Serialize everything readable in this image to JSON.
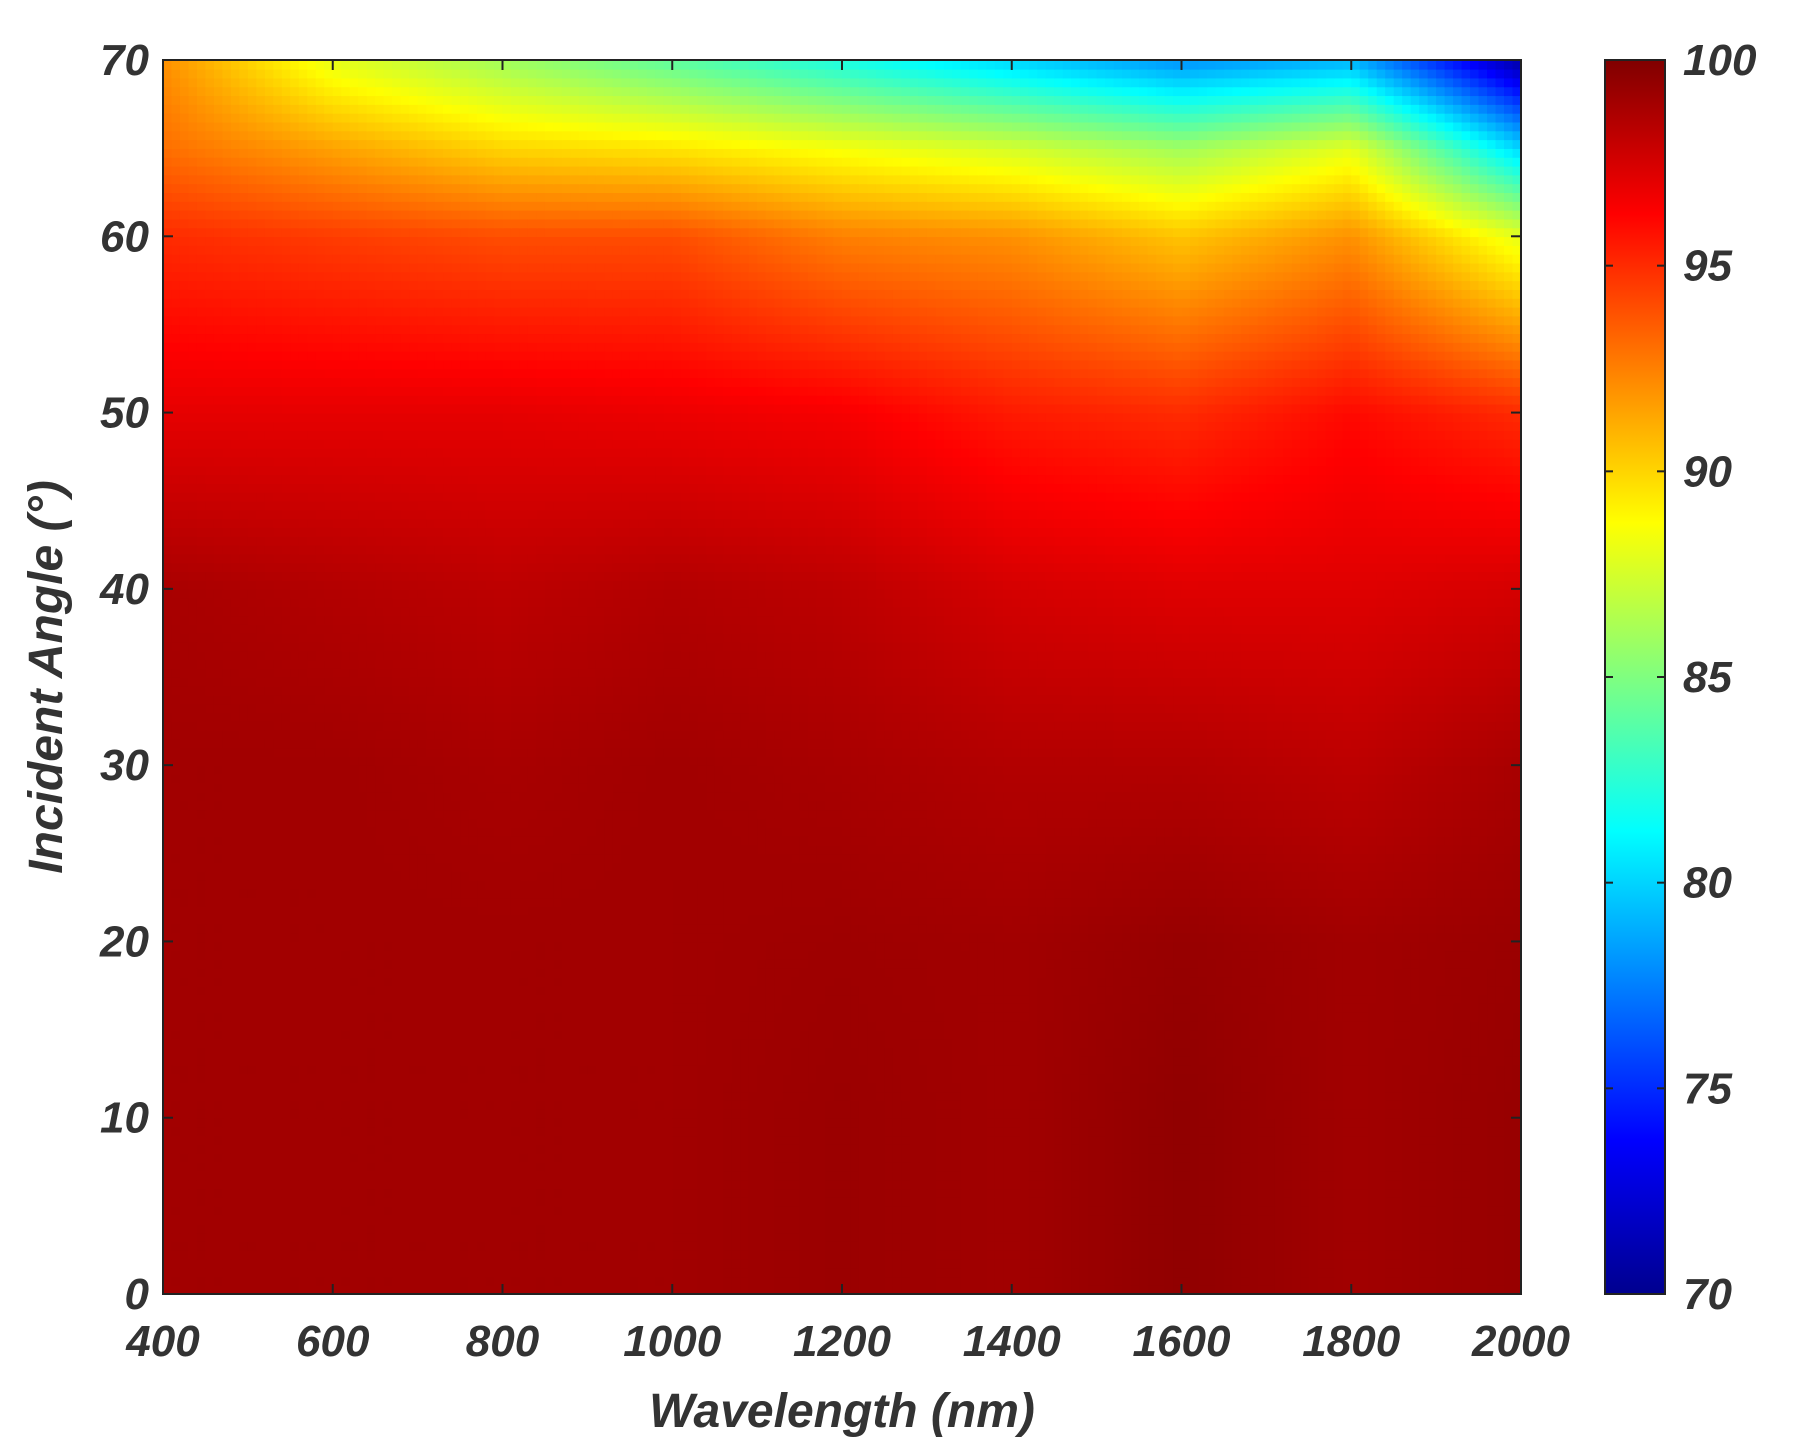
{
  "chart_data": {
    "type": "heatmap",
    "title": "",
    "xlabel": "Wavelength (nm)",
    "ylabel": "Incident Angle (°)",
    "xlim": [
      400,
      2000
    ],
    "ylim": [
      0,
      70
    ],
    "x_ticks": [
      "400",
      "600",
      "800",
      "1000",
      "1200",
      "1400",
      "1600",
      "1800",
      "2000"
    ],
    "y_ticks": [
      "0",
      "10",
      "20",
      "30",
      "40",
      "50",
      "60",
      "70"
    ],
    "colorbar": {
      "range": [
        70,
        100
      ],
      "ticks": [
        "70",
        "75",
        "80",
        "85",
        "90",
        "95",
        "100"
      ],
      "colormap": "jet"
    },
    "x": [
      400,
      600,
      800,
      1000,
      1200,
      1400,
      1600,
      1800,
      2000
    ],
    "y": [
      0,
      10,
      20,
      30,
      40,
      50,
      60,
      65,
      70
    ],
    "z": [
      [
        99.0,
        99.0,
        99.0,
        99.0,
        99.2,
        99.0,
        99.5,
        99.0,
        99.3
      ],
      [
        99.0,
        99.0,
        99.0,
        99.0,
        99.2,
        99.0,
        99.5,
        99.0,
        99.3
      ],
      [
        99.0,
        99.0,
        99.0,
        99.0,
        99.1,
        99.0,
        99.3,
        99.0,
        99.2
      ],
      [
        99.0,
        99.0,
        98.8,
        99.0,
        98.8,
        98.5,
        98.5,
        98.2,
        98.8
      ],
      [
        98.8,
        98.5,
        98.2,
        98.5,
        98.2,
        97.5,
        97.2,
        97.2,
        97.5
      ],
      [
        97.0,
        97.0,
        97.0,
        96.8,
        96.5,
        95.5,
        95.0,
        96.0,
        95.0
      ],
      [
        95.0,
        94.5,
        94.0,
        94.0,
        92.5,
        92.0,
        90.5,
        92.0,
        88.0
      ],
      [
        93.0,
        91.5,
        90.0,
        89.5,
        88.5,
        87.5,
        86.0,
        88.0,
        80.0
      ],
      [
        92.0,
        88.0,
        86.0,
        84.0,
        82.0,
        80.0,
        78.0,
        79.0,
        71.0
      ]
    ]
  }
}
